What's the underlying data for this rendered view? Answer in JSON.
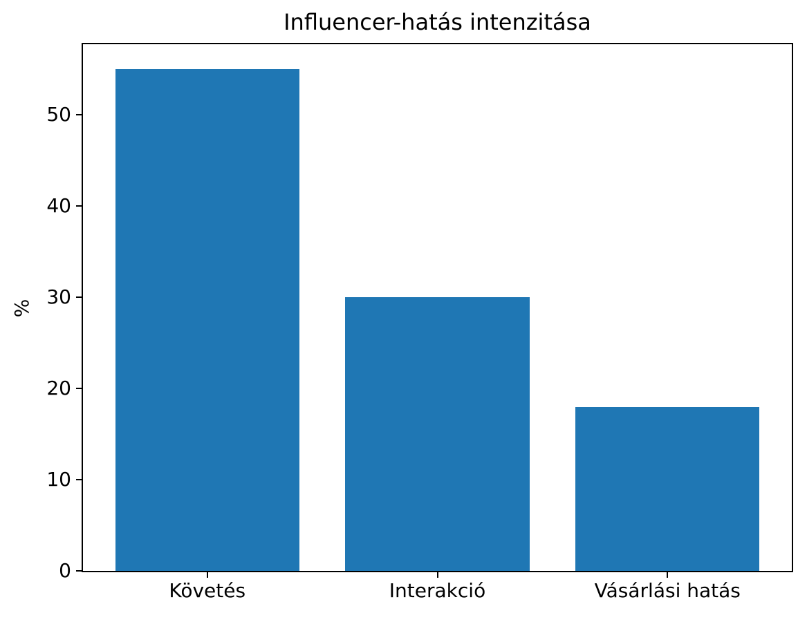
{
  "figure": {
    "background": "#ffffff",
    "text_color": "#000000",
    "spine_color": "#000000"
  },
  "chart_data": {
    "type": "bar",
    "title": "Influencer-hatás intenzitása",
    "categories": [
      "Követés",
      "Interakció",
      "Vásárlási hatás"
    ],
    "values": [
      55,
      30,
      18
    ],
    "xlabel": "",
    "ylabel": "%",
    "ylim": [
      0,
      57.75
    ],
    "yticks": [
      0,
      10,
      20,
      30,
      40,
      50
    ],
    "xlim": [
      -0.54,
      2.54
    ],
    "bar_width": 0.8,
    "bar_color": "#1f77b4",
    "grid": false,
    "legend": null
  }
}
